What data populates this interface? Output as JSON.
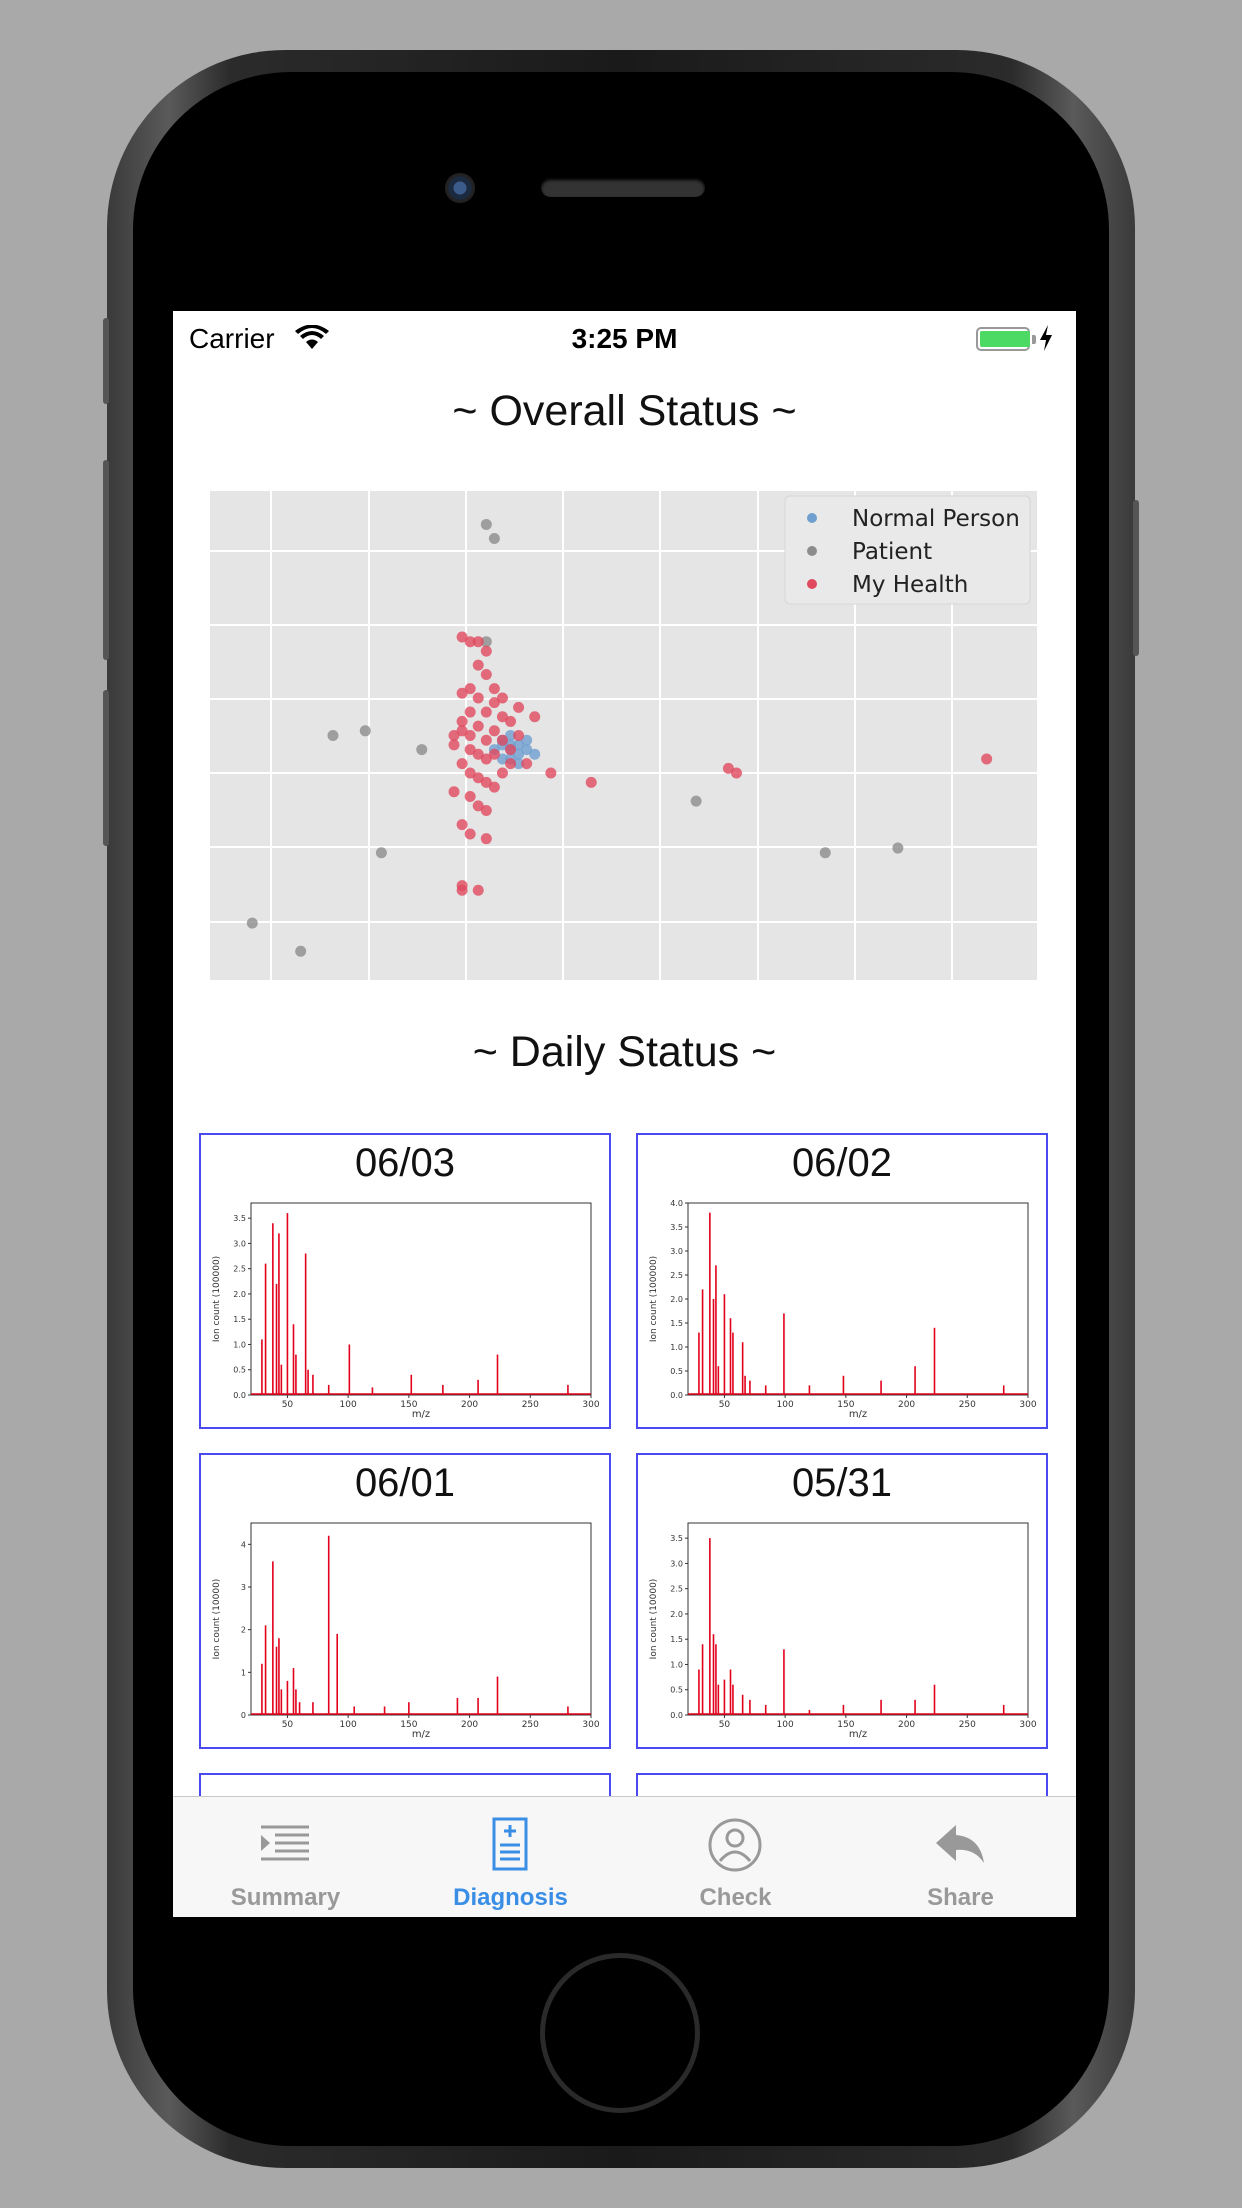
{
  "status_bar": {
    "carrier": "Carrier",
    "time": "3:25 PM",
    "battery_level": 1.0
  },
  "overall": {
    "title": "~ Overall Status ~",
    "chart_data": {
      "type": "scatter",
      "legend_position": "top-right",
      "grid": true,
      "background": "#e5e5e5",
      "xlim": [
        0,
        100
      ],
      "ylim": [
        0,
        100
      ],
      "series": [
        {
          "name": "Normal Person",
          "color": "#6f9fcf",
          "points": [
            [
              35,
              48
            ],
            [
              36,
              47
            ],
            [
              37,
              46
            ],
            [
              38,
              49
            ],
            [
              35,
              45
            ],
            [
              36,
              50
            ],
            [
              34,
              47
            ],
            [
              37,
              48
            ],
            [
              36,
              45
            ],
            [
              38,
              47
            ],
            [
              35,
              49
            ],
            [
              37,
              44
            ],
            [
              39,
              46
            ],
            [
              36,
              48
            ]
          ]
        },
        {
          "name": "Patient",
          "color": "#8c8c8c",
          "points": [
            [
              33,
              95
            ],
            [
              34,
              92
            ],
            [
              14,
              50
            ],
            [
              18,
              51
            ],
            [
              25,
              47
            ],
            [
              20,
              25
            ],
            [
              33,
              70
            ],
            [
              59,
              36
            ],
            [
              75,
              25
            ],
            [
              84,
              26
            ],
            [
              4,
              10
            ],
            [
              10,
              4
            ]
          ]
        },
        {
          "name": "My Health",
          "color": "#e04a5f",
          "points": [
            [
              30,
              71
            ],
            [
              31,
              70
            ],
            [
              32,
              70
            ],
            [
              33,
              68
            ],
            [
              32,
              65
            ],
            [
              33,
              63
            ],
            [
              31,
              60
            ],
            [
              30,
              59
            ],
            [
              32,
              58
            ],
            [
              34,
              57
            ],
            [
              31,
              55
            ],
            [
              33,
              55
            ],
            [
              30,
              53
            ],
            [
              35,
              54
            ],
            [
              36,
              53
            ],
            [
              32,
              52
            ],
            [
              34,
              51
            ],
            [
              30,
              51
            ],
            [
              31,
              50
            ],
            [
              33,
              49
            ],
            [
              35,
              49
            ],
            [
              37,
              50
            ],
            [
              29,
              48
            ],
            [
              31,
              47
            ],
            [
              32,
              46
            ],
            [
              33,
              45
            ],
            [
              34,
              46
            ],
            [
              36,
              44
            ],
            [
              30,
              44
            ],
            [
              31,
              42
            ],
            [
              32,
              41
            ],
            [
              33,
              40
            ],
            [
              35,
              42
            ],
            [
              34,
              39
            ],
            [
              29,
              38
            ],
            [
              31,
              37
            ],
            [
              32,
              35
            ],
            [
              33,
              34
            ],
            [
              30,
              31
            ],
            [
              31,
              29
            ],
            [
              33,
              28
            ],
            [
              30,
              18
            ],
            [
              30,
              17
            ],
            [
              32,
              17
            ],
            [
              38,
              44
            ],
            [
              41,
              42
            ],
            [
              46,
              40
            ],
            [
              63,
              43
            ],
            [
              64,
              42
            ],
            [
              95,
              45
            ],
            [
              39,
              54
            ],
            [
              37,
              56
            ],
            [
              35,
              58
            ],
            [
              34,
              60
            ],
            [
              29,
              50
            ],
            [
              36,
              47
            ]
          ]
        }
      ]
    }
  },
  "daily": {
    "title": "~ Daily Status ~",
    "cards": [
      {
        "date": "06/03",
        "xlabel": "m/z",
        "ylabel": "Ion count (100000)",
        "xticks": [
          "50",
          "100",
          "150",
          "200",
          "250",
          "300"
        ],
        "yticks": [
          "0.0",
          "0.5",
          "1.0",
          "1.5",
          "2.0",
          "2.5",
          "3.0",
          "3.5"
        ],
        "xlim": [
          20,
          300
        ],
        "ylim": [
          0,
          3.8
        ],
        "peaks": [
          [
            29,
            1.1
          ],
          [
            32,
            2.6
          ],
          [
            38,
            3.4
          ],
          [
            41,
            2.2
          ],
          [
            43,
            3.2
          ],
          [
            45,
            0.6
          ],
          [
            50,
            3.6
          ],
          [
            55,
            1.4
          ],
          [
            57,
            0.8
          ],
          [
            65,
            2.8
          ],
          [
            67,
            0.5
          ],
          [
            71,
            0.4
          ],
          [
            84,
            0.2
          ],
          [
            101,
            1.0
          ],
          [
            120,
            0.15
          ],
          [
            152,
            0.4
          ],
          [
            178,
            0.2
          ],
          [
            207,
            0.3
          ],
          [
            223,
            0.8
          ],
          [
            281,
            0.2
          ]
        ]
      },
      {
        "date": "06/02",
        "xlabel": "m/z",
        "ylabel": "Ion count (100000)",
        "xticks": [
          "50",
          "100",
          "150",
          "200",
          "250",
          "300"
        ],
        "yticks": [
          "0.0",
          "0.5",
          "1.0",
          "1.5",
          "2.0",
          "2.5",
          "3.0",
          "3.5",
          "4.0"
        ],
        "xlim": [
          20,
          300
        ],
        "ylim": [
          0,
          4.0
        ],
        "peaks": [
          [
            29,
            1.3
          ],
          [
            32,
            2.2
          ],
          [
            38,
            3.8
          ],
          [
            41,
            2.0
          ],
          [
            43,
            2.7
          ],
          [
            45,
            0.6
          ],
          [
            50,
            2.1
          ],
          [
            55,
            1.6
          ],
          [
            57,
            1.3
          ],
          [
            65,
            1.1
          ],
          [
            67,
            0.4
          ],
          [
            71,
            0.3
          ],
          [
            84,
            0.2
          ],
          [
            99,
            1.7
          ],
          [
            120,
            0.2
          ],
          [
            148,
            0.4
          ],
          [
            179,
            0.3
          ],
          [
            207,
            0.6
          ],
          [
            223,
            1.4
          ],
          [
            280,
            0.2
          ]
        ]
      },
      {
        "date": "06/01",
        "xlabel": "m/z",
        "ylabel": "Ion count (10000)",
        "xticks": [
          "50",
          "100",
          "150",
          "200",
          "250",
          "300"
        ],
        "yticks": [
          "0",
          "1",
          "2",
          "3",
          "4"
        ],
        "xlim": [
          20,
          300
        ],
        "ylim": [
          0,
          4.5
        ],
        "peaks": [
          [
            29,
            1.2
          ],
          [
            32,
            2.1
          ],
          [
            38,
            3.6
          ],
          [
            41,
            1.6
          ],
          [
            43,
            1.8
          ],
          [
            45,
            0.6
          ],
          [
            50,
            0.8
          ],
          [
            55,
            1.1
          ],
          [
            57,
            0.6
          ],
          [
            60,
            0.3
          ],
          [
            71,
            0.3
          ],
          [
            84,
            4.2
          ],
          [
            91,
            1.9
          ],
          [
            105,
            0.2
          ],
          [
            130,
            0.2
          ],
          [
            150,
            0.3
          ],
          [
            190,
            0.4
          ],
          [
            207,
            0.4
          ],
          [
            223,
            0.9
          ],
          [
            281,
            0.2
          ]
        ]
      },
      {
        "date": "05/31",
        "xlabel": "m/z",
        "ylabel": "Ion count (10000)",
        "xticks": [
          "50",
          "100",
          "150",
          "200",
          "250",
          "300"
        ],
        "yticks": [
          "0.0",
          "0.5",
          "1.0",
          "1.5",
          "2.0",
          "2.5",
          "3.0",
          "3.5"
        ],
        "xlim": [
          20,
          300
        ],
        "ylim": [
          0,
          3.8
        ],
        "peaks": [
          [
            29,
            0.9
          ],
          [
            32,
            1.4
          ],
          [
            38,
            3.5
          ],
          [
            41,
            1.6
          ],
          [
            43,
            1.4
          ],
          [
            45,
            0.6
          ],
          [
            50,
            0.7
          ],
          [
            55,
            0.9
          ],
          [
            57,
            0.6
          ],
          [
            65,
            0.4
          ],
          [
            71,
            0.3
          ],
          [
            84,
            0.2
          ],
          [
            99,
            1.3
          ],
          [
            120,
            0.1
          ],
          [
            148,
            0.2
          ],
          [
            179,
            0.3
          ],
          [
            207,
            0.3
          ],
          [
            223,
            0.6
          ],
          [
            280,
            0.2
          ]
        ]
      }
    ]
  },
  "tabs": [
    {
      "label": "Summary",
      "icon": "summary-list-icon",
      "active": false
    },
    {
      "label": "Diagnosis",
      "icon": "diagnosis-document-icon",
      "active": true
    },
    {
      "label": "Check",
      "icon": "check-person-icon",
      "active": false
    },
    {
      "label": "Share",
      "icon": "share-reply-icon",
      "active": false
    }
  ],
  "colors": {
    "active_tab": "#3a8ee6",
    "inactive_tab": "#999999",
    "card_border": "#4a4af0",
    "spectrum_line": "#e3001b"
  }
}
